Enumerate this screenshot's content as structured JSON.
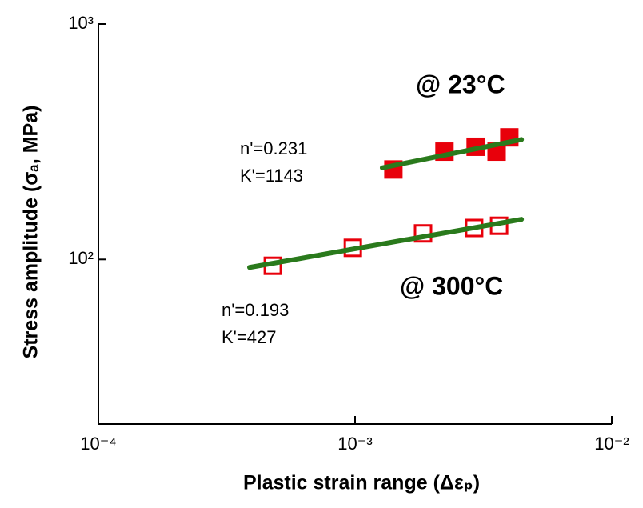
{
  "chart_data": {
    "type": "scatter",
    "x_label": "Plastic strain range (Δεₚ)",
    "y_label": "Stress amplitude (σₐ, MPa)",
    "x_log": true,
    "y_log": true,
    "xlim": [
      0.0001,
      0.01
    ],
    "ylim": [
      20,
      1000
    ],
    "xticks": [
      {
        "value": 0.0001,
        "label": "10⁻⁴"
      },
      {
        "value": 0.001,
        "label": "10⁻³"
      },
      {
        "value": 0.01,
        "label": "10⁻²"
      }
    ],
    "yticks": [
      {
        "value": 100,
        "label": "10²"
      },
      {
        "value": 1000,
        "label": "10³"
      }
    ],
    "series": [
      {
        "name": "@ 23°C",
        "color": "#e8000b",
        "marker": "filled-square",
        "x": [
          0.00141,
          0.00223,
          0.00295,
          0.00356,
          0.00399
        ],
        "values": [
          241,
          287,
          301,
          287,
          330
        ]
      },
      {
        "name": "@ 300°C",
        "color": "#e8000b",
        "marker": "open-square",
        "x": [
          0.000478,
          0.00098,
          0.00184,
          0.00291,
          0.00364
        ],
        "values": [
          94,
          112,
          129,
          136,
          139
        ]
      },
      {
        "color": "#2a7a1c",
        "marker": "line",
        "x": [
          0.001276,
          0.00445
        ],
        "values": [
          245,
          323
        ]
      },
      {
        "color": "#2a7a1c",
        "marker": "line",
        "x": [
          0.000388,
          0.00445
        ],
        "values": [
          92.5,
          148
        ]
      }
    ],
    "annotations": [
      "n'=0.231",
      "K'=1143",
      "n'=0.193",
      "K'=427"
    ]
  }
}
